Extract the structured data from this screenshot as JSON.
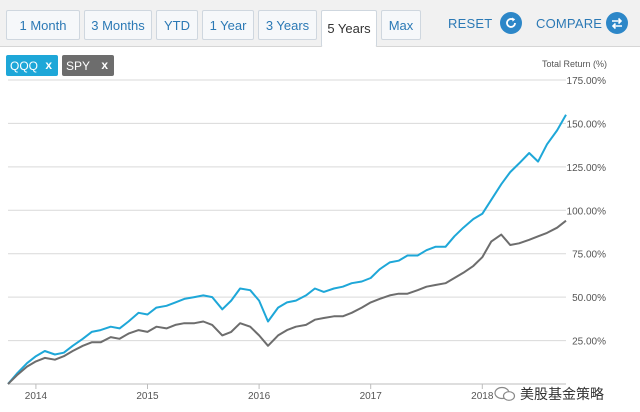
{
  "range_tabs": [
    {
      "label": "1 Month",
      "active": false
    },
    {
      "label": "3 Months",
      "active": false
    },
    {
      "label": "YTD",
      "active": false
    },
    {
      "label": "1 Year",
      "active": false
    },
    {
      "label": "3 Years",
      "active": false
    },
    {
      "label": "5 Years",
      "active": true
    },
    {
      "label": "Max",
      "active": false
    }
  ],
  "actions": {
    "reset_label": "RESET",
    "compare_label": "COMPARE"
  },
  "tickers": [
    {
      "symbol": "QQQ",
      "remove": "x",
      "color": "#1ea7d8"
    },
    {
      "symbol": "SPY",
      "remove": "x",
      "color": "#6d6d6d"
    }
  ],
  "watermark": "美股基金策略",
  "chart_data": {
    "type": "line",
    "ylabel": "Total Return (%)",
    "ylim": [
      0,
      175
    ],
    "yticks": [
      "25.00%",
      "50.00%",
      "75.00%",
      "100.00%",
      "125.00%",
      "150.00%",
      "175.00%"
    ],
    "xlim": [
      2013.75,
      2018.75
    ],
    "xticks": [
      "2014",
      "2015",
      "2016",
      "2017",
      "2018"
    ],
    "grid": true,
    "series": [
      {
        "name": "QQQ",
        "color": "#1ea7d8",
        "x": [
          2013.75,
          2013.83,
          2013.92,
          2014.0,
          2014.08,
          2014.17,
          2014.25,
          2014.33,
          2014.42,
          2014.5,
          2014.58,
          2014.67,
          2014.75,
          2014.83,
          2014.92,
          2015.0,
          2015.08,
          2015.17,
          2015.25,
          2015.33,
          2015.42,
          2015.5,
          2015.58,
          2015.67,
          2015.75,
          2015.83,
          2015.92,
          2016.0,
          2016.08,
          2016.17,
          2016.25,
          2016.33,
          2016.42,
          2016.5,
          2016.58,
          2016.67,
          2016.75,
          2016.83,
          2016.92,
          2017.0,
          2017.08,
          2017.17,
          2017.25,
          2017.33,
          2017.42,
          2017.5,
          2017.58,
          2017.67,
          2017.75,
          2017.83,
          2017.92,
          2018.0,
          2018.08,
          2018.17,
          2018.25,
          2018.33,
          2018.42,
          2018.5,
          2018.58,
          2018.67,
          2018.75
        ],
        "y": [
          0,
          6,
          12,
          16,
          19,
          17,
          18,
          22,
          26,
          30,
          31,
          33,
          32,
          36,
          41,
          40,
          44,
          45,
          47,
          49,
          50,
          51,
          50,
          43,
          48,
          55,
          54,
          48,
          36,
          44,
          47,
          48,
          51,
          55,
          53,
          55,
          56,
          58,
          59,
          61,
          66,
          70,
          71,
          74,
          74,
          77,
          79,
          79,
          85,
          90,
          95,
          98,
          106,
          115,
          122,
          127,
          133,
          128,
          138,
          146,
          155
        ]
      },
      {
        "name": "SPY",
        "color": "#6d6d6d",
        "x": [
          2013.75,
          2013.83,
          2013.92,
          2014.0,
          2014.08,
          2014.17,
          2014.25,
          2014.33,
          2014.42,
          2014.5,
          2014.58,
          2014.67,
          2014.75,
          2014.83,
          2014.92,
          2015.0,
          2015.08,
          2015.17,
          2015.25,
          2015.33,
          2015.42,
          2015.5,
          2015.58,
          2015.67,
          2015.75,
          2015.83,
          2015.92,
          2016.0,
          2016.08,
          2016.17,
          2016.25,
          2016.33,
          2016.42,
          2016.5,
          2016.58,
          2016.67,
          2016.75,
          2016.83,
          2016.92,
          2017.0,
          2017.08,
          2017.17,
          2017.25,
          2017.33,
          2017.42,
          2017.5,
          2017.58,
          2017.67,
          2017.75,
          2017.83,
          2017.92,
          2018.0,
          2018.08,
          2018.17,
          2018.25,
          2018.33,
          2018.42,
          2018.5,
          2018.58,
          2018.67,
          2018.75
        ],
        "y": [
          0,
          5,
          10,
          13,
          15,
          14,
          16,
          19,
          22,
          24,
          24,
          27,
          26,
          29,
          31,
          30,
          33,
          32,
          34,
          35,
          35,
          36,
          34,
          28,
          30,
          35,
          33,
          28,
          22,
          28,
          31,
          33,
          34,
          37,
          38,
          39,
          39,
          41,
          44,
          47,
          49,
          51,
          52,
          52,
          54,
          56,
          57,
          58,
          61,
          64,
          68,
          73,
          82,
          86,
          80,
          81,
          83,
          85,
          87,
          90,
          94
        ]
      }
    ]
  }
}
